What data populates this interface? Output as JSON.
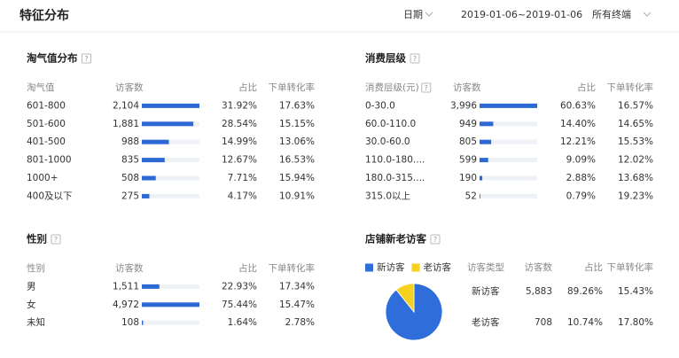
{
  "header": {
    "title": "特征分布",
    "date_label": "日期",
    "date_range": "2019-01-06~2019-01-06",
    "terminal": "所有终端"
  },
  "help_icon": "?",
  "taoqi": {
    "title": "淘气值分布",
    "columns": [
      "淘气值",
      "访客数",
      "占比",
      "下单转化率"
    ],
    "rows": [
      {
        "label": "601-800",
        "visitors": 2104,
        "visitors_label": "2,104",
        "share": "31.92%",
        "conversion": "17.63%"
      },
      {
        "label": "501-600",
        "visitors": 1881,
        "visitors_label": "1,881",
        "share": "28.54%",
        "conversion": "15.15%"
      },
      {
        "label": "401-500",
        "visitors": 988,
        "visitors_label": "988",
        "share": "14.99%",
        "conversion": "13.06%"
      },
      {
        "label": "801-1000",
        "visitors": 835,
        "visitors_label": "835",
        "share": "12.67%",
        "conversion": "16.53%"
      },
      {
        "label": "1000+",
        "visitors": 508,
        "visitors_label": "508",
        "share": "7.71%",
        "conversion": "15.94%"
      },
      {
        "label": "400及以下",
        "visitors": 275,
        "visitors_label": "275",
        "share": "4.17%",
        "conversion": "10.91%"
      }
    ]
  },
  "consumption": {
    "title": "消费层级",
    "columns": [
      "消费层级(元)",
      "访客数",
      "占比",
      "下单转化率"
    ],
    "rows": [
      {
        "label": "0-30.0",
        "visitors": 3996,
        "visitors_label": "3,996",
        "share": "60.63%",
        "conversion": "16.57%"
      },
      {
        "label": "60.0-110.0",
        "visitors": 949,
        "visitors_label": "949",
        "share": "14.40%",
        "conversion": "14.65%"
      },
      {
        "label": "30.0-60.0",
        "visitors": 805,
        "visitors_label": "805",
        "share": "12.21%",
        "conversion": "15.53%"
      },
      {
        "label": "110.0-180....",
        "visitors": 599,
        "visitors_label": "599",
        "share": "9.09%",
        "conversion": "12.02%"
      },
      {
        "label": "180.0-315....",
        "visitors": 190,
        "visitors_label": "190",
        "share": "2.88%",
        "conversion": "13.68%"
      },
      {
        "label": "315.0以上",
        "visitors": 52,
        "visitors_label": "52",
        "share": "0.79%",
        "conversion": "19.23%"
      }
    ]
  },
  "gender": {
    "title": "性别",
    "columns": [
      "性别",
      "访客数",
      "占比",
      "下单转化率"
    ],
    "rows": [
      {
        "label": "男",
        "visitors": 1511,
        "visitors_label": "1,511",
        "share": "22.93%",
        "conversion": "17.34%"
      },
      {
        "label": "女",
        "visitors": 4972,
        "visitors_label": "4,972",
        "share": "75.44%",
        "conversion": "15.47%"
      },
      {
        "label": "未知",
        "visitors": 108,
        "visitors_label": "108",
        "share": "1.64%",
        "conversion": "2.78%"
      }
    ]
  },
  "visitors": {
    "title": "店铺新老访客",
    "columns": [
      "访客类型",
      "访客数",
      "占比",
      "下单转化率"
    ],
    "rows": [
      {
        "label": "新访客",
        "color": "#2f6ddb",
        "visitors": 5883,
        "visitors_label": "5,883",
        "share": "89.26%",
        "conversion": "15.43%"
      },
      {
        "label": "老访客",
        "color": "#f6d21f",
        "visitors": 708,
        "visitors_label": "708",
        "share": "10.74%",
        "conversion": "17.80%"
      }
    ]
  }
}
